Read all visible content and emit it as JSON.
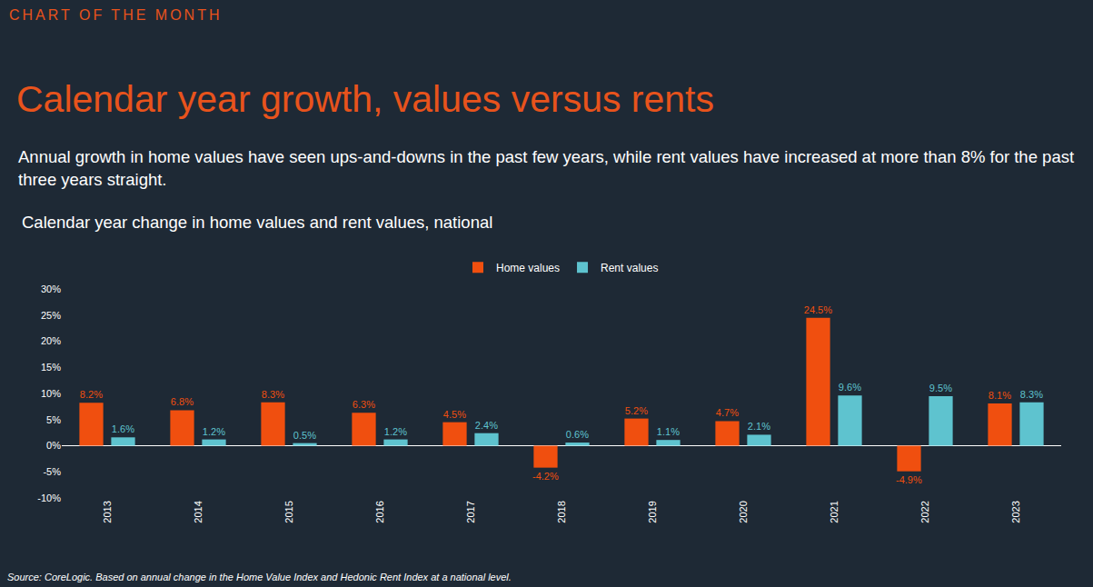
{
  "chart_data": {
    "type": "bar",
    "header": "CHART OF THE MONTH",
    "title": "Calendar year growth, values versus rents",
    "subtitle": "Annual growth in home values have seen ups-and-downs in the past few years, while rent values have increased at more than 8% for the past three years straight.",
    "chart_title": "Calendar year change in home values and rent values, national",
    "source": "Source: CoreLogic. Based on annual change in the Home Value Index and Hedonic Rent Index at a national level.",
    "categories": [
      "2013",
      "2014",
      "2015",
      "2016",
      "2017",
      "2018",
      "2019",
      "2020",
      "2021",
      "2022",
      "2023"
    ],
    "series": [
      {
        "name": "Home values",
        "color": "#f04f0f",
        "values": [
          8.2,
          6.8,
          8.3,
          6.3,
          4.5,
          -4.2,
          5.2,
          4.7,
          24.5,
          -4.9,
          8.1
        ],
        "value_labels": [
          "8.2%",
          "6.8%",
          "8.3%",
          "6.3%",
          "4.5%",
          "-4.2%",
          "5.2%",
          "4.7%",
          "24.5%",
          "-4.9%",
          "8.1%"
        ]
      },
      {
        "name": "Rent values",
        "color": "#5ec3cf",
        "values": [
          1.6,
          1.2,
          0.5,
          1.2,
          2.4,
          0.6,
          1.1,
          2.1,
          9.6,
          9.5,
          8.3
        ],
        "value_labels": [
          "1.6%",
          "1.2%",
          "0.5%",
          "1.2%",
          "2.4%",
          "0.6%",
          "1.1%",
          "2.1%",
          "9.6%",
          "9.5%",
          "8.3%"
        ]
      }
    ],
    "ylim": [
      -10,
      30
    ],
    "yticks": [
      {
        "value": -10,
        "label": "-10%"
      },
      {
        "value": -5,
        "label": "-5%"
      },
      {
        "value": 0,
        "label": "0%"
      },
      {
        "value": 5,
        "label": "5%"
      },
      {
        "value": 10,
        "label": "10%"
      },
      {
        "value": 15,
        "label": "15%"
      },
      {
        "value": 20,
        "label": "20%"
      },
      {
        "value": 25,
        "label": "25%"
      },
      {
        "value": 30,
        "label": "30%"
      }
    ],
    "grid": false,
    "legend": "top",
    "data_labels": true
  }
}
